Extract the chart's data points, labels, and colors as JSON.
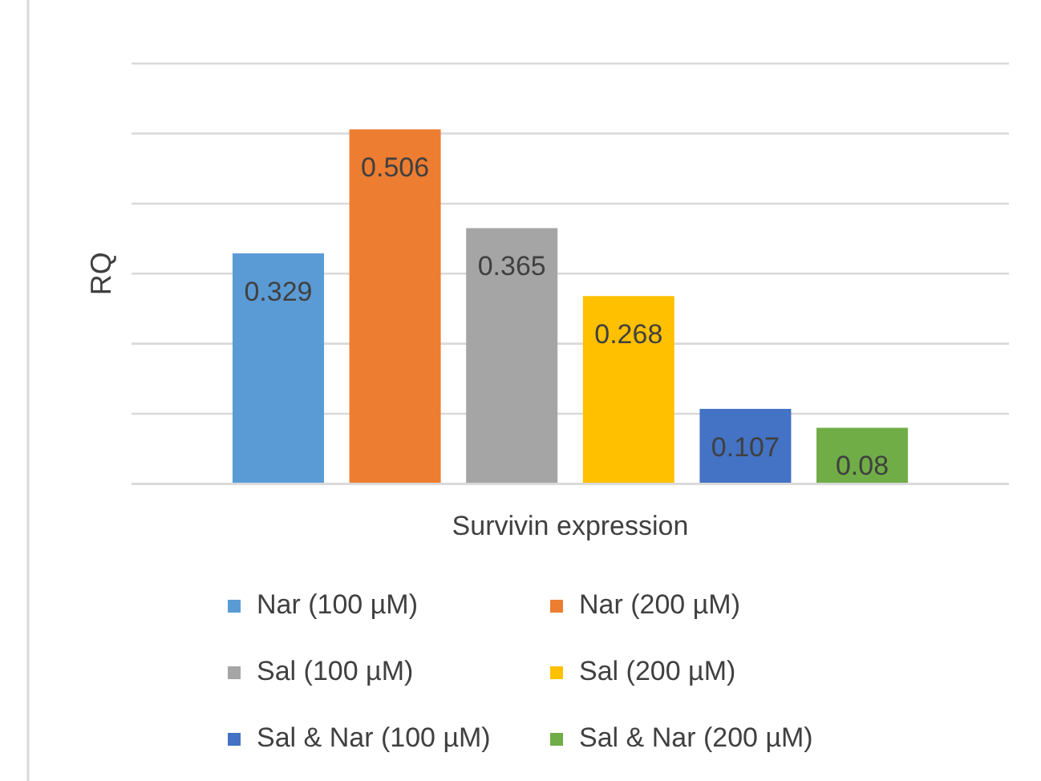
{
  "chart_data": {
    "type": "bar",
    "xlabel": "Survivin expression",
    "ylabel": "RQ",
    "categories": [
      null,
      null,
      null,
      null,
      null,
      null
    ],
    "stacked": true,
    "series": [
      {
        "name": "Nar (100 µM)",
        "color": "#5b9bd5",
        "values": [
          0.329,
          null,
          null,
          null,
          null,
          null
        ]
      },
      {
        "name": "Nar (200 µM)",
        "color": "#ed7d31",
        "values": [
          null,
          0.506,
          null,
          null,
          null,
          null
        ]
      },
      {
        "name": "Sal (100 µM)",
        "color": "#a5a5a5",
        "values": [
          null,
          null,
          0.365,
          null,
          null,
          null
        ]
      },
      {
        "name": "Sal (200 µM)",
        "color": "#ffc000",
        "values": [
          null,
          null,
          null,
          0.268,
          null,
          null
        ]
      },
      {
        "name": "Sal & Nar (100 µM)",
        "color": "#4472c4",
        "values": [
          null,
          null,
          null,
          null,
          0.107,
          null
        ]
      },
      {
        "name": "Sal & Nar (200 µM)",
        "color": "#70ad47",
        "values": [
          null,
          null,
          null,
          null,
          null,
          0.08
        ]
      }
    ],
    "grid": "y",
    "legend": "bottom",
    "data_labels": true
  }
}
